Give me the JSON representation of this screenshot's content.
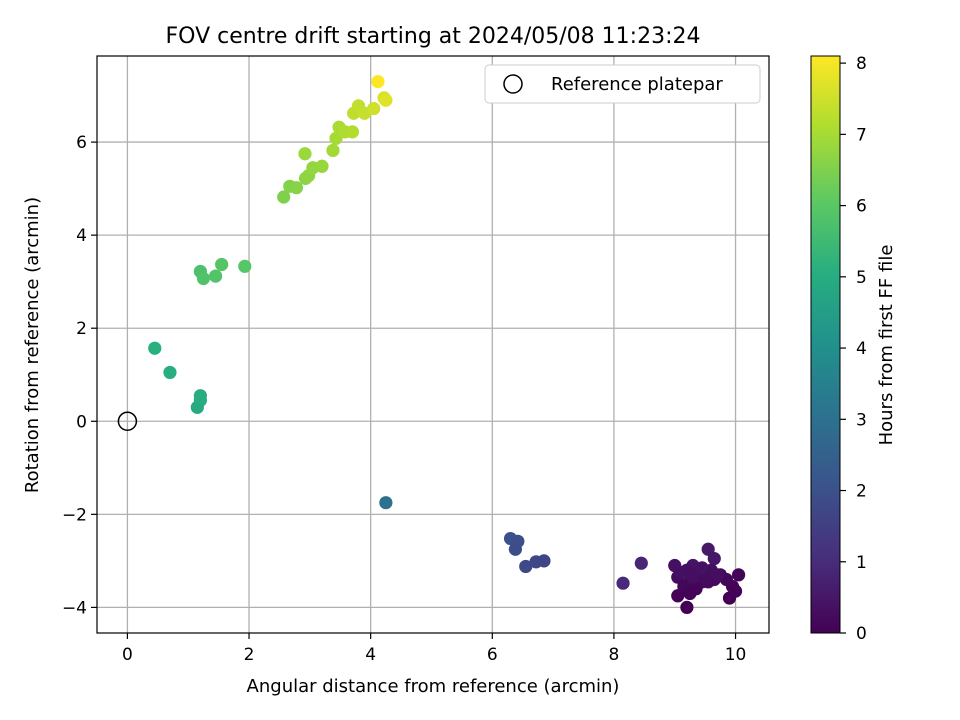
{
  "chart_data": {
    "type": "scatter",
    "title": "FOV centre drift starting at 2024/05/08 11:23:24",
    "xlabel": "Angular distance from reference (arcmin)",
    "ylabel": "Rotation from reference (arcmin)",
    "xlim": [
      -0.5,
      10.55
    ],
    "ylim": [
      -4.55,
      7.85
    ],
    "xticks": [
      0,
      2,
      4,
      6,
      8,
      10
    ],
    "yticks": [
      -4,
      -2,
      0,
      2,
      4,
      6
    ],
    "xtick_labels": [
      "0",
      "2",
      "4",
      "6",
      "8",
      "10"
    ],
    "ytick_labels": [
      "−4",
      "−2",
      "0",
      "2",
      "4",
      "6"
    ],
    "grid": true,
    "legend": {
      "placement": "top-right",
      "entries": [
        "Reference platepar"
      ]
    },
    "reference_point": {
      "x": 0,
      "y": 0,
      "marker": "open-circle"
    },
    "colorbar": {
      "label": "Hours from first FF file",
      "range": [
        0,
        8.1
      ],
      "ticks": [
        0,
        1,
        2,
        3,
        4,
        5,
        6,
        7,
        8
      ],
      "tick_labels": [
        "0",
        "1",
        "2",
        "3",
        "4",
        "5",
        "6",
        "7",
        "8"
      ],
      "colormap": "viridis"
    },
    "points": [
      {
        "x": 9.55,
        "y": -2.75,
        "c": 0.55
      },
      {
        "x": 9.65,
        "y": -2.95,
        "c": 0.5
      },
      {
        "x": 9.3,
        "y": -3.1,
        "c": 0.45
      },
      {
        "x": 9.0,
        "y": -3.1,
        "c": 0.35
      },
      {
        "x": 9.2,
        "y": -3.2,
        "c": 0.3
      },
      {
        "x": 9.4,
        "y": -3.25,
        "c": 0.25
      },
      {
        "x": 9.6,
        "y": -3.2,
        "c": 0.3
      },
      {
        "x": 9.75,
        "y": -3.3,
        "c": 0.2
      },
      {
        "x": 9.85,
        "y": -3.4,
        "c": 0.15
      },
      {
        "x": 10.05,
        "y": -3.3,
        "c": 0.1
      },
      {
        "x": 9.05,
        "y": -3.35,
        "c": 0.25
      },
      {
        "x": 9.25,
        "y": -3.45,
        "c": 0.2
      },
      {
        "x": 9.45,
        "y": -3.45,
        "c": 0.2
      },
      {
        "x": 9.65,
        "y": -3.4,
        "c": 0.25
      },
      {
        "x": 9.95,
        "y": -3.55,
        "c": 0.1
      },
      {
        "x": 9.15,
        "y": -3.55,
        "c": 0.15
      },
      {
        "x": 9.35,
        "y": -3.6,
        "c": 0.1
      },
      {
        "x": 9.55,
        "y": -3.45,
        "c": 0.2
      },
      {
        "x": 9.3,
        "y": -3.35,
        "c": 0.3
      },
      {
        "x": 9.1,
        "y": -3.25,
        "c": 0.35
      },
      {
        "x": 9.05,
        "y": -3.75,
        "c": 0.05
      },
      {
        "x": 9.25,
        "y": -3.7,
        "c": 0.05
      },
      {
        "x": 9.5,
        "y": -3.35,
        "c": 0.25
      },
      {
        "x": 9.9,
        "y": -3.8,
        "c": 0.0
      },
      {
        "x": 10.0,
        "y": -3.65,
        "c": 0.05
      },
      {
        "x": 9.2,
        "y": -4.0,
        "c": 0.0
      },
      {
        "x": 9.7,
        "y": -3.3,
        "c": 0.3
      },
      {
        "x": 9.45,
        "y": -3.15,
        "c": 0.4
      },
      {
        "x": 8.45,
        "y": -3.05,
        "c": 0.85
      },
      {
        "x": 8.15,
        "y": -3.48,
        "c": 0.95
      },
      {
        "x": 6.3,
        "y": -2.52,
        "c": 2.0
      },
      {
        "x": 6.42,
        "y": -2.58,
        "c": 1.95
      },
      {
        "x": 6.38,
        "y": -2.75,
        "c": 1.9
      },
      {
        "x": 6.55,
        "y": -3.12,
        "c": 1.8
      },
      {
        "x": 6.72,
        "y": -3.02,
        "c": 1.75
      },
      {
        "x": 6.85,
        "y": -3.0,
        "c": 1.7
      },
      {
        "x": 4.25,
        "y": -1.75,
        "c": 3.0
      },
      {
        "x": 1.15,
        "y": 0.3,
        "c": 4.9
      },
      {
        "x": 1.2,
        "y": 0.45,
        "c": 4.95
      },
      {
        "x": 1.2,
        "y": 0.55,
        "c": 5.0
      },
      {
        "x": 0.7,
        "y": 1.05,
        "c": 5.05
      },
      {
        "x": 0.45,
        "y": 1.57,
        "c": 5.1
      },
      {
        "x": 1.2,
        "y": 3.22,
        "c": 5.75
      },
      {
        "x": 1.25,
        "y": 3.07,
        "c": 5.8
      },
      {
        "x": 1.45,
        "y": 3.12,
        "c": 5.85
      },
      {
        "x": 1.55,
        "y": 3.37,
        "c": 5.9
      },
      {
        "x": 1.93,
        "y": 3.33,
        "c": 5.95
      },
      {
        "x": 2.57,
        "y": 4.82,
        "c": 6.5
      },
      {
        "x": 2.67,
        "y": 5.05,
        "c": 6.55
      },
      {
        "x": 2.78,
        "y": 5.02,
        "c": 6.6
      },
      {
        "x": 2.93,
        "y": 5.22,
        "c": 6.65
      },
      {
        "x": 2.98,
        "y": 5.28,
        "c": 6.7
      },
      {
        "x": 3.05,
        "y": 5.45,
        "c": 6.75
      },
      {
        "x": 3.2,
        "y": 5.48,
        "c": 6.8
      },
      {
        "x": 2.92,
        "y": 5.75,
        "c": 6.85
      },
      {
        "x": 3.38,
        "y": 5.82,
        "c": 6.95
      },
      {
        "x": 3.43,
        "y": 6.08,
        "c": 7.0
      },
      {
        "x": 3.48,
        "y": 6.32,
        "c": 7.05
      },
      {
        "x": 3.58,
        "y": 6.22,
        "c": 7.1
      },
      {
        "x": 3.7,
        "y": 6.22,
        "c": 7.15
      },
      {
        "x": 3.72,
        "y": 6.62,
        "c": 7.3
      },
      {
        "x": 3.8,
        "y": 6.78,
        "c": 7.35
      },
      {
        "x": 3.9,
        "y": 6.62,
        "c": 7.4
      },
      {
        "x": 4.05,
        "y": 6.72,
        "c": 7.5
      },
      {
        "x": 4.22,
        "y": 6.95,
        "c": 7.6
      },
      {
        "x": 4.25,
        "y": 6.9,
        "c": 7.7
      },
      {
        "x": 4.12,
        "y": 7.3,
        "c": 8.1
      }
    ]
  }
}
